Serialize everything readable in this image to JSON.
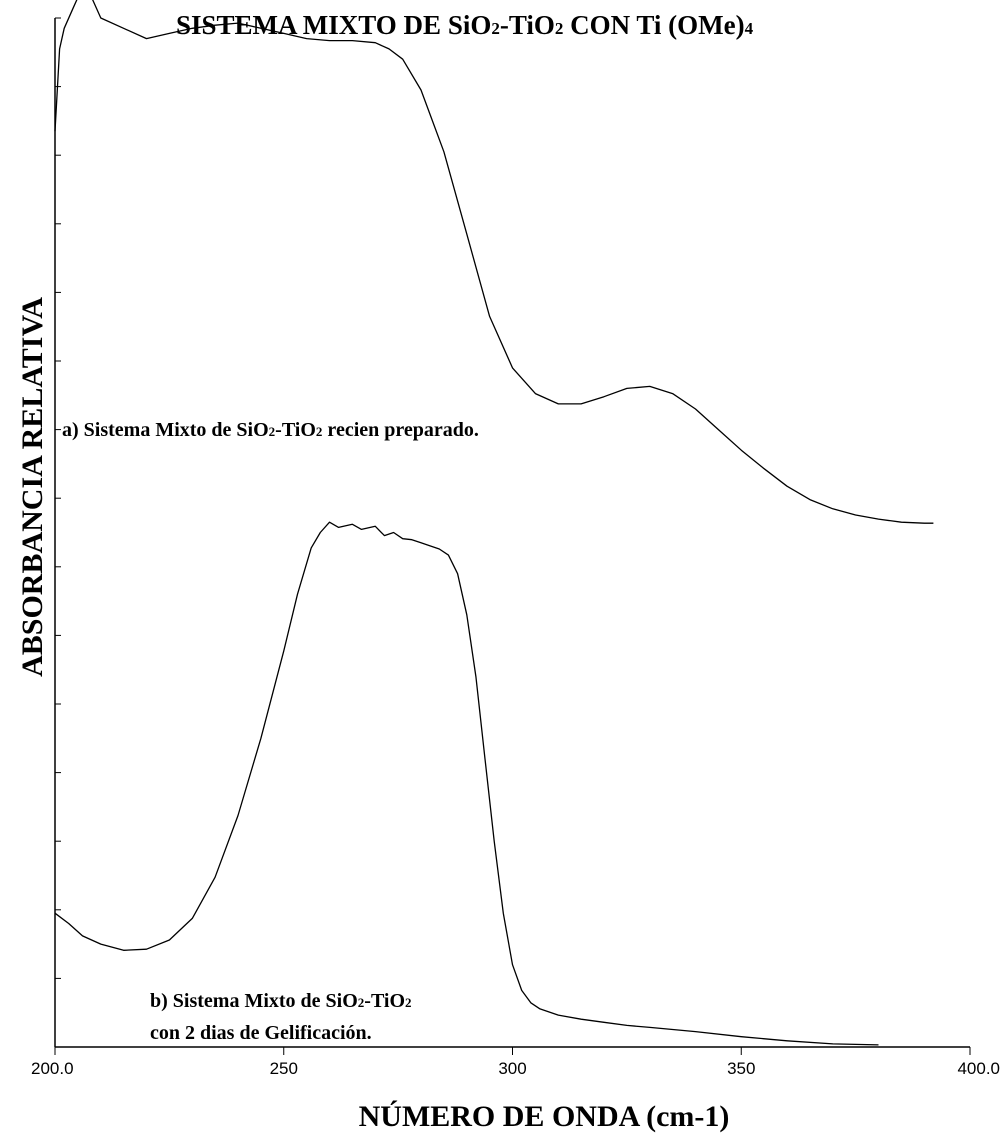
{
  "chart_data": {
    "type": "line",
    "title_main": "SISTEMA MIXTO DE SiO",
    "title_sub1": "2",
    "title_mid": "-TiO",
    "title_sub2": "2",
    "title_end": " CON Ti (OMe)",
    "title_sub3": "4",
    "xlabel": "NÚMERO DE ONDA (cm-1)",
    "ylabel": "ABSORBANCIA RELATIVA",
    "xlim": [
      200,
      400
    ],
    "x_ticks": [
      200,
      250,
      300,
      350,
      400
    ],
    "x_tick_labels": [
      "200.0",
      "250",
      "300",
      "350",
      "400.0"
    ],
    "y_ticks_count": 16,
    "grid": false,
    "series": [
      {
        "annotation_a1": "a) Sistema Mixto de SiO",
        "annotation_a_sub1": "2",
        "annotation_a2": "-TiO",
        "annotation_a_sub2": "2",
        "annotation_a3": " recien preparado.",
        "x": [
          200.0,
          201.0,
          202.0,
          204.0,
          206.0,
          208.0,
          210.0,
          215.0,
          220.0,
          225.0,
          230.0,
          235.0,
          240.0,
          245.0,
          250.0,
          255.0,
          260.0,
          265.0,
          270.0,
          273.0,
          276.0,
          280.0,
          285.0,
          290.0,
          295.0,
          300.0,
          305.0,
          310.0,
          315.0,
          320.0,
          325.0,
          330.0,
          335.0,
          340.0,
          345.0,
          350.0,
          355.0,
          360.0,
          365.0,
          370.0,
          375.0,
          380.0,
          385.0,
          390.0,
          392.0
        ],
        "y": [
          0.89,
          0.97,
          0.99,
          1.01,
          1.03,
          1.02,
          1.0,
          0.99,
          0.98,
          0.985,
          0.99,
          0.993,
          0.995,
          0.99,
          0.985,
          0.98,
          0.978,
          0.978,
          0.976,
          0.97,
          0.96,
          0.93,
          0.87,
          0.79,
          0.71,
          0.66,
          0.635,
          0.625,
          0.625,
          0.632,
          0.64,
          0.642,
          0.635,
          0.62,
          0.6,
          0.58,
          0.562,
          0.545,
          0.532,
          0.523,
          0.517,
          0.513,
          0.51,
          0.509,
          0.509
        ]
      },
      {
        "annotation_b1": "b) Sistema Mixto de SiO",
        "annotation_b_sub1": "2",
        "annotation_b2": "-TiO",
        "annotation_b_sub2": "2",
        "annotation_b3": "con 2 dias de Gelificación.",
        "x": [
          200.0,
          203.0,
          206.0,
          210.0,
          215.0,
          220.0,
          225.0,
          230.0,
          235.0,
          240.0,
          245.0,
          250.0,
          253.0,
          256.0,
          258.0,
          260.0,
          262.0,
          265.0,
          267.0,
          270.0,
          272.0,
          274.0,
          276.0,
          278.0,
          280.0,
          282.0,
          284.0,
          286.0,
          288.0,
          290.0,
          292.0,
          294.0,
          296.0,
          298.0,
          300.0,
          302.0,
          304.0,
          306.0,
          310.0,
          315.0,
          320.0,
          325.0,
          330.0,
          340.0,
          350.0,
          360.0,
          370.0,
          380.0
        ],
        "y": [
          0.13,
          0.12,
          0.108,
          0.1,
          0.094,
          0.095,
          0.104,
          0.125,
          0.165,
          0.225,
          0.3,
          0.385,
          0.44,
          0.485,
          0.5,
          0.51,
          0.505,
          0.508,
          0.503,
          0.506,
          0.497,
          0.5,
          0.494,
          0.493,
          0.49,
          0.487,
          0.484,
          0.478,
          0.46,
          0.42,
          0.36,
          0.28,
          0.2,
          0.13,
          0.08,
          0.055,
          0.043,
          0.037,
          0.031,
          0.027,
          0.024,
          0.021,
          0.019,
          0.015,
          0.01,
          0.006,
          0.003,
          0.002
        ]
      }
    ]
  }
}
